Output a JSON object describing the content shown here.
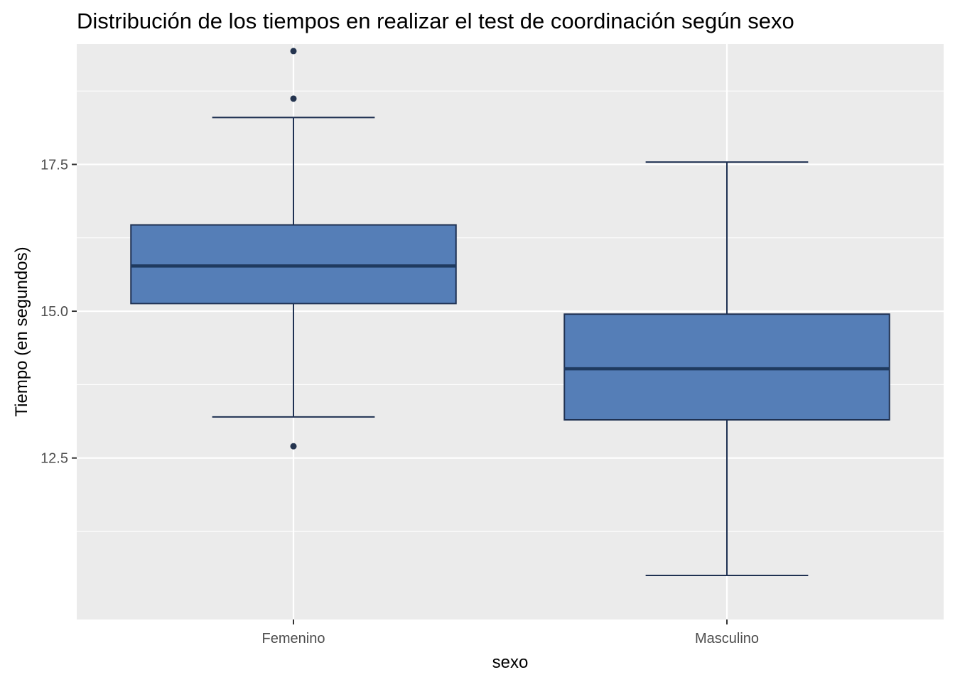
{
  "chart_data": {
    "type": "boxplot",
    "title": "Distribución de los tiempos en realizar el test de coordinación según sexo",
    "xlabel": "sexo",
    "ylabel": "Tiempo (en segundos)",
    "categories": [
      "Femenino",
      "Masculino"
    ],
    "ylim": [
      9.75,
      19.55
    ],
    "yticks": [
      12.5,
      15.0,
      17.5
    ],
    "ytick_labels": [
      "12.5",
      "15.0",
      "17.5"
    ],
    "boxes": [
      {
        "name": "Femenino",
        "whisker_low": 13.2,
        "q1": 15.13,
        "median": 15.77,
        "q3": 16.47,
        "whisker_high": 18.3,
        "outliers": [
          19.43,
          18.62,
          12.7
        ]
      },
      {
        "name": "Masculino",
        "whisker_low": 10.5,
        "q1": 13.15,
        "median": 14.02,
        "q3": 14.95,
        "whisker_high": 17.54,
        "outliers": []
      }
    ],
    "grid": true,
    "colors": {
      "panel": "#ebebeb",
      "grid": "#ffffff",
      "box_fill": "#4f7ab5",
      "box_line": "#1f3152",
      "median": "#1f3a5f",
      "outlier": "#24344f"
    }
  }
}
